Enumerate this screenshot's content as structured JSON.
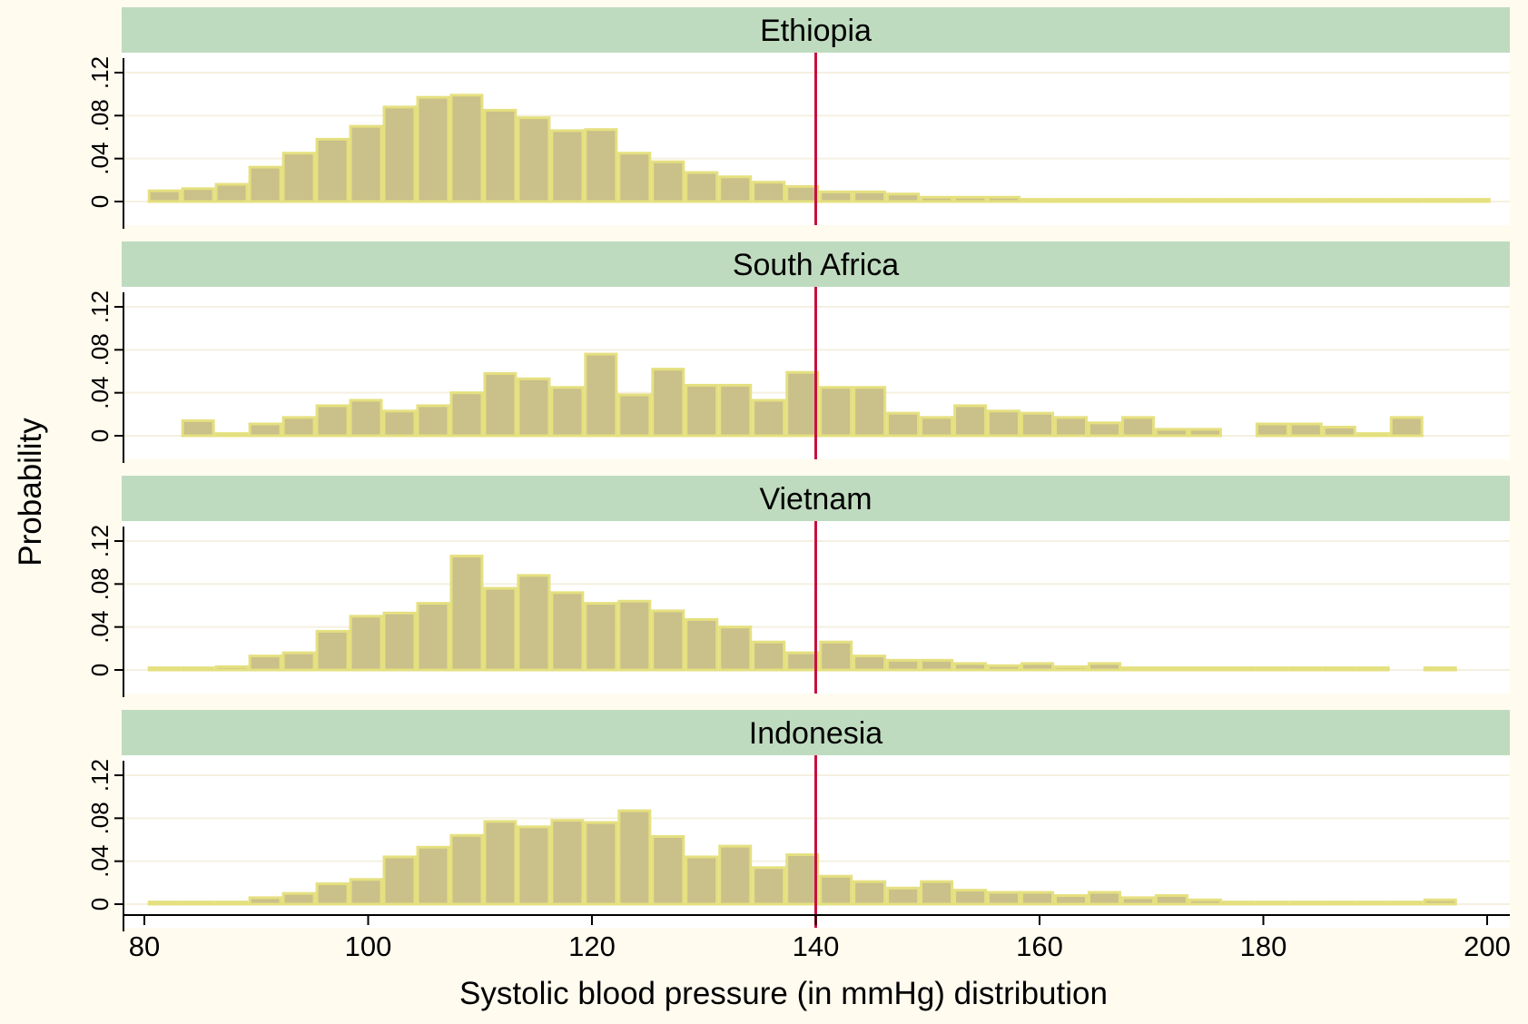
{
  "chart_data": {
    "type": "bar",
    "subtype": "faceted-histogram",
    "xlabel": "Systolic blood pressure (in mmHg) distribution",
    "ylabel": "Probability",
    "xlim": [
      80,
      200
    ],
    "ylim": [
      0,
      0.12
    ],
    "x_ticks": [
      "80",
      "100",
      "120",
      "140",
      "160",
      "180",
      "200"
    ],
    "y_ticks": [
      "0",
      ".04",
      ".08",
      ".12"
    ],
    "reference_line": {
      "x": 140,
      "color": "#c8103e"
    },
    "bin_width": 3,
    "bin_start": 80.3,
    "colors": {
      "background": "#fffbef",
      "plot_region": "#ffffff",
      "strip": "#bfdbbf",
      "bar_fill": "#c9c08a",
      "bar_edge": "#e5e07f",
      "gridline": "#f5f0e0"
    },
    "panels": [
      {
        "title": "Ethiopia",
        "values": [
          0.01,
          0.012,
          0.016,
          0.032,
          0.045,
          0.058,
          0.07,
          0.088,
          0.097,
          0.099,
          0.085,
          0.078,
          0.066,
          0.067,
          0.045,
          0.037,
          0.027,
          0.023,
          0.018,
          0.014,
          0.009,
          0.009,
          0.007,
          0.004,
          0.004,
          0.004,
          0.002,
          0.002,
          0.002,
          0.002,
          0.002,
          0.002,
          0.002,
          0.002,
          0.002,
          0.002,
          0.002,
          0.002,
          0.002,
          0.002
        ]
      },
      {
        "title": "South Africa",
        "values": [
          null,
          0.014,
          0.002,
          0.011,
          0.017,
          0.028,
          0.033,
          0.023,
          0.028,
          0.04,
          0.058,
          0.053,
          0.045,
          0.076,
          0.038,
          0.062,
          0.047,
          0.047,
          0.033,
          0.059,
          0.045,
          0.045,
          0.021,
          0.017,
          0.028,
          0.023,
          0.021,
          0.017,
          0.012,
          0.017,
          0.006,
          0.006,
          null,
          0.011,
          0.011,
          0.008,
          0.002,
          0.017
        ]
      },
      {
        "title": "Vietnam",
        "values": [
          0.002,
          0.002,
          0.003,
          0.013,
          0.016,
          0.036,
          0.05,
          0.053,
          0.062,
          0.106,
          0.076,
          0.088,
          0.072,
          0.062,
          0.064,
          0.055,
          0.047,
          0.04,
          0.026,
          0.016,
          0.026,
          0.013,
          0.009,
          0.009,
          0.006,
          0.004,
          0.006,
          0.003,
          0.006,
          0.002,
          0.002,
          0.002,
          0.002,
          0.002,
          0.002,
          0.002,
          0.002,
          null,
          0.002
        ]
      },
      {
        "title": "Indonesia",
        "values": [
          0.002,
          0.002,
          0.002,
          0.006,
          0.01,
          0.019,
          0.023,
          0.044,
          0.053,
          0.064,
          0.077,
          0.072,
          0.078,
          0.076,
          0.087,
          0.063,
          0.044,
          0.054,
          0.034,
          0.046,
          0.026,
          0.021,
          0.015,
          0.021,
          0.013,
          0.011,
          0.011,
          0.008,
          0.011,
          0.006,
          0.008,
          0.004,
          0.002,
          0.002,
          0.002,
          0.002,
          0.002,
          0.002,
          0.004
        ]
      }
    ]
  }
}
